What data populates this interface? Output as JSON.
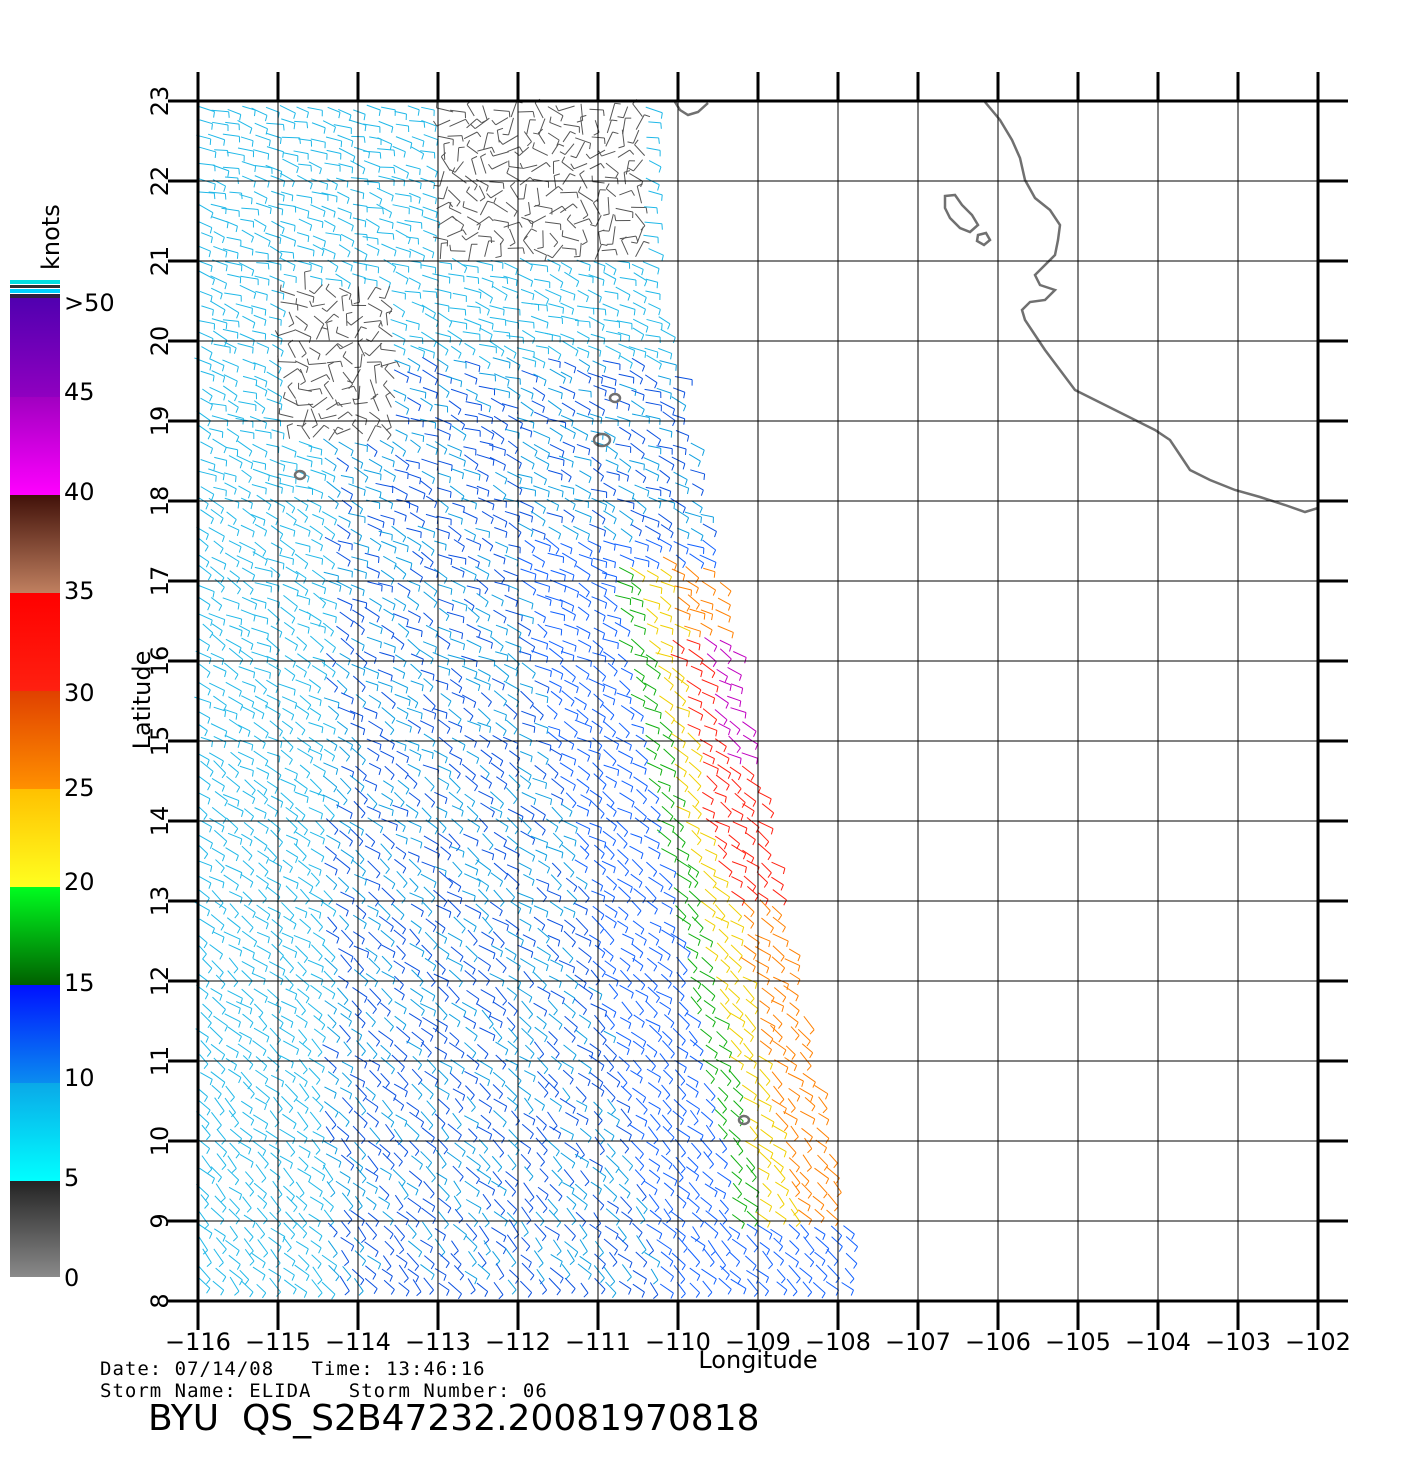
{
  "map": {
    "longitude_ticks": [
      "−116",
      "−115",
      "−114",
      "−113",
      "−112",
      "−111",
      "−110",
      "−109",
      "−108",
      "−107",
      "−106",
      "−105",
      "−104",
      "−103",
      "−102"
    ],
    "latitude_ticks": [
      "8",
      "9",
      "10",
      "11",
      "12",
      "13",
      "14",
      "15",
      "16",
      "17",
      "18",
      "19",
      "20",
      "21",
      "22",
      "23"
    ],
    "lon_range": [
      -116,
      -102
    ],
    "lat_range": [
      8,
      23
    ],
    "xlabel": "Longitude",
    "ylabel": "Latitude",
    "grid": true
  },
  "colorbar": {
    "unit": "knots",
    "labels": [
      ">50",
      "45",
      "40",
      "35",
      "30",
      "25",
      "20",
      "15",
      "10",
      "5",
      "0"
    ],
    "colors": {
      "0-5": "#555555",
      "5-10": "#00d8ff",
      "10-15": "#0040ff",
      "15-20": "#00a000",
      "20-25": "#ffe000",
      "25-30": "#ff7000",
      "30-35": "#ff1010",
      "35-40": "#7a3018",
      "40-50": "#d000d0",
      ">50": "#6010c0"
    }
  },
  "footer": {
    "line1": "Date: 07/14/08   Time: 13:46:16",
    "line2": "Storm Name: ELIDA   Storm Number: 06",
    "product": "BYU  QS_S2B47232.20081970818"
  }
}
